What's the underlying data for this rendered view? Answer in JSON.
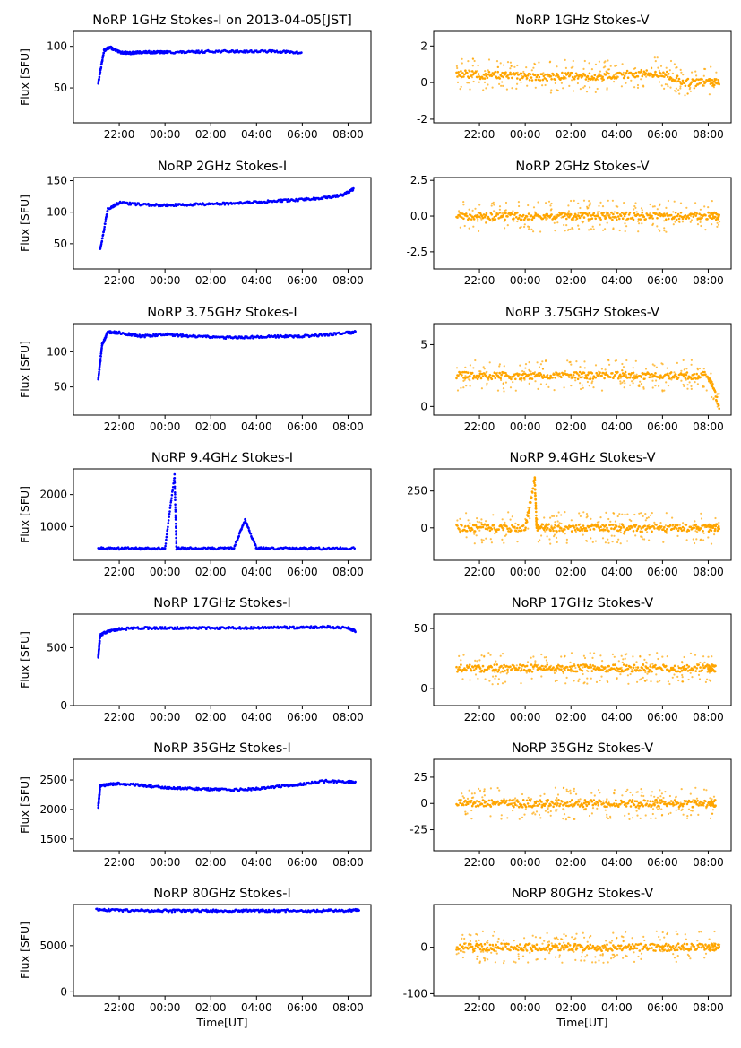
{
  "figure": {
    "xlabel": "Time[UT]",
    "ylabel": "Flux [SFU]"
  },
  "colors": {
    "stokes_i": "#0000ff",
    "stokes_v": "#ffa500",
    "axes": "#000000"
  },
  "chart_data": [
    {
      "type": "scatter",
      "title": "NoRP 1GHz Stokes-I on 2013-04-05[JST]",
      "ylabel": "Flux [SFU]",
      "xlabel": "",
      "xticks": [
        "22:00",
        "00:00",
        "02:00",
        "04:00",
        "06:00",
        "08:00"
      ],
      "ylim": [
        8,
        118
      ],
      "yticks": [
        50,
        100
      ],
      "series": [
        {
          "x": [
            "21:05",
            "21:20",
            "21:35",
            "22:00",
            "22:30",
            "23:00",
            "23:30",
            "00:00",
            "01:00",
            "02:00",
            "03:00",
            "04:00",
            "05:00",
            "06:00"
          ],
          "y": [
            56,
            95,
            99,
            93,
            92,
            93,
            93,
            93,
            93,
            94,
            94,
            94,
            94,
            92
          ]
        }
      ]
    },
    {
      "type": "scatter",
      "title": "NoRP 1GHz Stokes-V",
      "ylabel": "",
      "xlabel": "",
      "xticks": [
        "22:00",
        "00:00",
        "02:00",
        "04:00",
        "06:00",
        "08:00"
      ],
      "ylim": [
        -2.2,
        2.8
      ],
      "yticks": [
        -2,
        0,
        2
      ],
      "series": [
        {
          "x": [
            "21:00",
            "22:00",
            "23:00",
            "00:00",
            "01:00",
            "02:00",
            "03:00",
            "04:00",
            "05:00",
            "06:00",
            "07:00",
            "08:00",
            "08:30"
          ],
          "y": [
            0.5,
            0.4,
            0.4,
            0.3,
            0.3,
            0.4,
            0.3,
            0.4,
            0.5,
            0.5,
            0.0,
            0.0,
            0.0
          ]
        }
      ]
    },
    {
      "type": "scatter",
      "title": "NoRP 2GHz Stokes-I",
      "ylabel": "Flux [SFU]",
      "xlabel": "",
      "xticks": [
        "22:00",
        "00:00",
        "02:00",
        "04:00",
        "06:00",
        "08:00"
      ],
      "ylim": [
        10,
        155
      ],
      "yticks": [
        50,
        100,
        150
      ],
      "series": [
        {
          "x": [
            "21:10",
            "21:30",
            "22:00",
            "23:00",
            "00:00",
            "01:00",
            "02:00",
            "03:00",
            "04:00",
            "05:00",
            "06:00",
            "07:00",
            "07:45",
            "08:15"
          ],
          "y": [
            40,
            105,
            115,
            112,
            111,
            112,
            113,
            114,
            116,
            118,
            120,
            123,
            127,
            137
          ]
        }
      ]
    },
    {
      "type": "scatter",
      "title": "NoRP 2GHz Stokes-V",
      "ylabel": "",
      "xlabel": "",
      "xticks": [
        "22:00",
        "00:00",
        "02:00",
        "04:00",
        "06:00",
        "08:00"
      ],
      "ylim": [
        -3.7,
        2.7
      ],
      "yticks": [
        -2.5,
        0.0,
        2.5
      ],
      "series": [
        {
          "x": [
            "21:00",
            "22:00",
            "23:00",
            "00:00",
            "01:00",
            "02:00",
            "03:00",
            "04:00",
            "05:00",
            "06:00",
            "07:00",
            "08:00",
            "08:30"
          ],
          "y": [
            0.0,
            0.0,
            0.0,
            0.0,
            0.0,
            0.0,
            0.0,
            0.0,
            0.0,
            0.0,
            0.0,
            0.0,
            0.0
          ]
        }
      ]
    },
    {
      "type": "scatter",
      "title": "NoRP 3.75GHz Stokes-I",
      "ylabel": "Flux [SFU]",
      "xlabel": "",
      "xticks": [
        "22:00",
        "00:00",
        "02:00",
        "04:00",
        "06:00",
        "08:00"
      ],
      "ylim": [
        10,
        140
      ],
      "yticks": [
        50,
        100
      ],
      "series": [
        {
          "x": [
            "21:05",
            "21:15",
            "21:30",
            "22:00",
            "23:00",
            "00:00",
            "01:00",
            "02:00",
            "03:00",
            "04:00",
            "05:00",
            "06:00",
            "07:00",
            "08:00",
            "08:20"
          ],
          "y": [
            60,
            110,
            128,
            127,
            122,
            125,
            122,
            121,
            120,
            121,
            122,
            122,
            124,
            127,
            128
          ]
        }
      ]
    },
    {
      "type": "scatter",
      "title": "NoRP 3.75GHz Stokes-V",
      "ylabel": "",
      "xlabel": "",
      "xticks": [
        "22:00",
        "00:00",
        "02:00",
        "04:00",
        "06:00",
        "08:00"
      ],
      "ylim": [
        -0.7,
        6.7
      ],
      "yticks": [
        0,
        5
      ],
      "series": [
        {
          "x": [
            "21:00",
            "22:00",
            "23:00",
            "00:00",
            "01:00",
            "02:00",
            "03:00",
            "04:00",
            "05:00",
            "06:00",
            "07:00",
            "08:00",
            "08:30"
          ],
          "y": [
            2.5,
            2.5,
            2.5,
            2.5,
            2.5,
            2.5,
            2.5,
            2.5,
            2.5,
            2.5,
            2.5,
            2.5,
            0.0
          ]
        }
      ]
    },
    {
      "type": "scatter",
      "title": "NoRP 9.4GHz Stokes-I",
      "ylabel": "Flux [SFU]",
      "xlabel": "",
      "xticks": [
        "22:00",
        "00:00",
        "02:00",
        "04:00",
        "06:00",
        "08:00"
      ],
      "ylim": [
        -50,
        2800
      ],
      "yticks": [
        1000,
        2000
      ],
      "series": [
        {
          "x": [
            "21:05",
            "22:00",
            "23:00",
            "00:00",
            "00:25",
            "00:30",
            "01:00",
            "02:00",
            "03:00",
            "03:30",
            "04:00",
            "05:00",
            "06:00",
            "07:00",
            "08:20"
          ],
          "y": [
            330,
            320,
            320,
            320,
            2600,
            320,
            320,
            320,
            320,
            1200,
            320,
            320,
            320,
            320,
            320
          ]
        }
      ]
    },
    {
      "type": "scatter",
      "title": "NoRP 9.4GHz Stokes-V",
      "ylabel": "",
      "xlabel": "",
      "xticks": [
        "22:00",
        "00:00",
        "02:00",
        "04:00",
        "06:00",
        "08:00"
      ],
      "ylim": [
        -220,
        400
      ],
      "yticks": [
        0,
        250
      ],
      "series": [
        {
          "x": [
            "21:00",
            "22:00",
            "23:00",
            "00:00",
            "00:25",
            "00:30",
            "01:00",
            "02:00",
            "03:00",
            "04:00",
            "05:00",
            "06:00",
            "07:00",
            "08:00",
            "08:30"
          ],
          "y": [
            0,
            0,
            0,
            0,
            330,
            0,
            0,
            0,
            0,
            0,
            0,
            0,
            0,
            0,
            0
          ]
        }
      ]
    },
    {
      "type": "scatter",
      "title": "NoRP 17GHz Stokes-I",
      "ylabel": "Flux [SFU]",
      "xlabel": "",
      "xticks": [
        "22:00",
        "00:00",
        "02:00",
        "04:00",
        "06:00",
        "08:00"
      ],
      "ylim": [
        0,
        790
      ],
      "yticks": [
        0,
        500
      ],
      "series": [
        {
          "x": [
            "21:05",
            "21:10",
            "21:30",
            "22:00",
            "23:00",
            "00:00",
            "01:00",
            "02:00",
            "03:00",
            "04:00",
            "05:00",
            "06:00",
            "07:00",
            "08:00",
            "08:20"
          ],
          "y": [
            420,
            610,
            640,
            660,
            670,
            670,
            670,
            670,
            670,
            670,
            675,
            675,
            680,
            670,
            640
          ]
        }
      ]
    },
    {
      "type": "scatter",
      "title": "NoRP 17GHz Stokes-V",
      "ylabel": "",
      "xlabel": "",
      "xticks": [
        "22:00",
        "00:00",
        "02:00",
        "04:00",
        "06:00",
        "08:00"
      ],
      "ylim": [
        -14,
        62
      ],
      "yticks": [
        0,
        50
      ],
      "series": [
        {
          "x": [
            "21:00",
            "22:00",
            "23:00",
            "00:00",
            "01:00",
            "02:00",
            "03:00",
            "04:00",
            "05:00",
            "06:00",
            "07:00",
            "08:00",
            "08:20"
          ],
          "y": [
            17,
            17,
            17,
            17,
            17,
            17,
            17,
            17,
            17,
            17,
            17,
            17,
            17
          ]
        }
      ]
    },
    {
      "type": "scatter",
      "title": "NoRP 35GHz Stokes-I",
      "ylabel": "Flux [SFU]",
      "xlabel": "",
      "xticks": [
        "22:00",
        "00:00",
        "02:00",
        "04:00",
        "06:00",
        "08:00"
      ],
      "ylim": [
        1300,
        2850
      ],
      "yticks": [
        1500,
        2000,
        2500
      ],
      "series": [
        {
          "x": [
            "21:05",
            "21:10",
            "21:30",
            "22:00",
            "23:00",
            "00:00",
            "01:00",
            "02:00",
            "03:00",
            "04:00",
            "05:00",
            "06:00",
            "07:00",
            "08:00",
            "08:20"
          ],
          "y": [
            2050,
            2400,
            2420,
            2440,
            2410,
            2370,
            2360,
            2340,
            2330,
            2350,
            2390,
            2430,
            2480,
            2470,
            2450
          ]
        }
      ]
    },
    {
      "type": "scatter",
      "title": "NoRP 35GHz Stokes-V",
      "ylabel": "",
      "xlabel": "",
      "xticks": [
        "22:00",
        "00:00",
        "02:00",
        "04:00",
        "06:00",
        "08:00"
      ],
      "ylim": [
        -45,
        42
      ],
      "yticks": [
        -25,
        0,
        25
      ],
      "series": [
        {
          "x": [
            "21:00",
            "22:00",
            "23:00",
            "00:00",
            "01:00",
            "02:00",
            "03:00",
            "04:00",
            "05:00",
            "06:00",
            "07:00",
            "08:00",
            "08:20"
          ],
          "y": [
            0,
            0,
            0,
            0,
            0,
            0,
            0,
            0,
            0,
            0,
            0,
            0,
            0
          ]
        }
      ]
    },
    {
      "type": "scatter",
      "title": "NoRP 80GHz Stokes-I",
      "ylabel": "Flux [SFU]",
      "xlabel": "Time[UT]",
      "xticks": [
        "22:00",
        "00:00",
        "02:00",
        "04:00",
        "06:00",
        "08:00"
      ],
      "ylim": [
        -450,
        9450
      ],
      "yticks": [
        0,
        5000
      ],
      "series": [
        {
          "x": [
            "21:00",
            "22:00",
            "23:00",
            "00:00",
            "01:00",
            "02:00",
            "03:00",
            "04:00",
            "05:00",
            "06:00",
            "07:00",
            "08:00",
            "08:30"
          ],
          "y": [
            8900,
            8820,
            8800,
            8780,
            8780,
            8780,
            8780,
            8780,
            8780,
            8780,
            8790,
            8800,
            8850
          ]
        }
      ]
    },
    {
      "type": "scatter",
      "title": "NoRP 80GHz Stokes-V",
      "ylabel": "",
      "xlabel": "Time[UT]",
      "xticks": [
        "22:00",
        "00:00",
        "02:00",
        "04:00",
        "06:00",
        "08:00"
      ],
      "ylim": [
        -105,
        92
      ],
      "yticks": [
        -100,
        0
      ],
      "series": [
        {
          "x": [
            "21:00",
            "22:00",
            "23:00",
            "00:00",
            "01:00",
            "02:00",
            "03:00",
            "04:00",
            "05:00",
            "06:00",
            "07:00",
            "08:00",
            "08:30"
          ],
          "y": [
            0,
            0,
            0,
            0,
            0,
            0,
            0,
            0,
            0,
            0,
            0,
            0,
            0
          ]
        }
      ]
    }
  ]
}
